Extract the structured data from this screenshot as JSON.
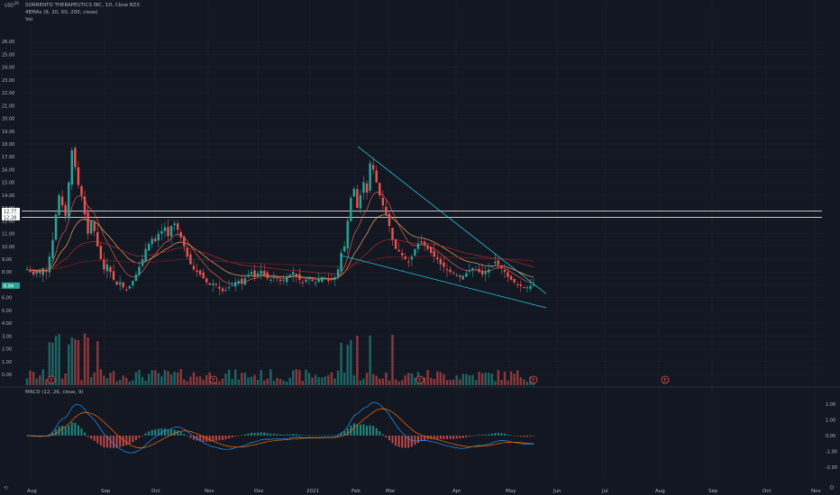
{
  "header": {
    "symbol_line": "SORRENTO THERAPEUTICS INC, 1D, Cboe BZX",
    "emas_line": "4EMAs (9, 20, 50, 200, close)",
    "vol_line": "Vol",
    "currency": "USD",
    "currency_sup": "20"
  },
  "macd": {
    "legend": "MACD (12, 26, close, 9)",
    "ticks": [
      "2.00",
      "1.00",
      "0.00",
      "-1.00",
      "-2.00"
    ]
  },
  "icons": {
    "settings": "gear-icon",
    "reset": "reset-icon"
  },
  "colors": {
    "up": "#26a69a",
    "down": "#ef5350",
    "bg": "#131722",
    "grid": "#1e222d",
    "trend": "#26c6da",
    "level": "#ffffff",
    "macd": "#2196f3",
    "signal": "#ff6d00"
  },
  "chart_data": {
    "type": "candlestick",
    "title": "SORRENTO THERAPEUTICS INC, 1D, Cboe BZX",
    "ylim": [
      0,
      27
    ],
    "y_ticks": [
      "26.00",
      "25.00",
      "24.00",
      "23.00",
      "22.00",
      "21.00",
      "20.00",
      "19.00",
      "18.00",
      "17.00",
      "16.00",
      "15.00",
      "14.00",
      "13.00",
      "12.00",
      "11.00",
      "10.00",
      "9.00",
      "8.00",
      "7.00",
      "6.00",
      "5.00",
      "4.00",
      "3.00",
      "2.00",
      "1.00",
      "0.00"
    ],
    "x_ticks": [
      "Aug",
      "Sep",
      "Oct",
      "Nov",
      "Dec",
      "2021",
      "Feb",
      "Mar",
      "Apr",
      "May",
      "Jun",
      "Jul",
      "Aug",
      "Sep",
      "Oct",
      "Nov"
    ],
    "price_labels": [
      12.77,
      12.28,
      6.94
    ],
    "horizontal_levels": [
      12.77,
      12.28
    ],
    "close_series": [
      8.2,
      8.0,
      7.8,
      8.1,
      7.9,
      8.3,
      8.0,
      9.2,
      10.5,
      12.5,
      14.0,
      13.2,
      12.4,
      15.0,
      17.5,
      16.2,
      14.8,
      14.0,
      12.5,
      11.0,
      12.0,
      11.2,
      10.0,
      9.0,
      8.2,
      8.6,
      8.0,
      7.4,
      7.0,
      7.2,
      6.8,
      6.6,
      6.9,
      7.3,
      7.8,
      8.4,
      9.0,
      9.8,
      10.2,
      10.6,
      10.4,
      11.0,
      11.2,
      11.5,
      10.8,
      11.6,
      11.8,
      11.3,
      10.7,
      10.0,
      9.2,
      8.6,
      8.2,
      8.0,
      7.8,
      7.5,
      7.2,
      7.0,
      7.1,
      7.0,
      6.7,
      6.5,
      6.6,
      6.8,
      7.0,
      7.2,
      7.3,
      7.1,
      7.5,
      7.8,
      8.0,
      7.6,
      7.9,
      8.1,
      7.8,
      7.5,
      7.4,
      7.6,
      7.5,
      7.3,
      7.4,
      7.6,
      7.8,
      8.0,
      7.7,
      7.4,
      7.2,
      7.4,
      7.6,
      7.3,
      7.2,
      7.4,
      7.6,
      7.5,
      7.3,
      7.4,
      7.6,
      8.2,
      9.5,
      10.0,
      12.0,
      13.8,
      14.5,
      13.0,
      14.0,
      15.0,
      14.2,
      16.5,
      16.0,
      15.0,
      14.0,
      13.2,
      12.5,
      11.6,
      10.5,
      9.8,
      9.6,
      9.3,
      9.0,
      8.8,
      9.2,
      9.8,
      10.2,
      10.3,
      10.1,
      9.8,
      9.5,
      9.2,
      9.0,
      8.6,
      8.4,
      8.2,
      8.0,
      7.9,
      7.8,
      7.6,
      7.7,
      7.9,
      8.1,
      8.3,
      8.2,
      8.0,
      7.8,
      8.0,
      8.2,
      8.5,
      8.8,
      8.6,
      8.3,
      8.0,
      7.6,
      7.4,
      7.2,
      7.0,
      6.9,
      6.8,
      6.8,
      6.9,
      7.0
    ],
    "volume_ylim": [
      0,
      1
    ],
    "macd_ylim": [
      -2.5,
      2.5
    ],
    "annotations": [
      "E",
      "E",
      "E",
      "E",
      "E"
    ]
  }
}
